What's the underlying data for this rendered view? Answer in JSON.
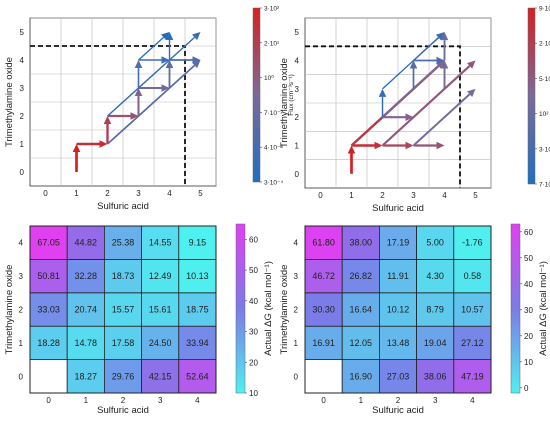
{
  "chart_data": [
    {
      "type": "vector-field",
      "xlabel": "Sulfuric acid",
      "ylabel": "Trimethylamine oxide",
      "xticks": [
        "0",
        "1",
        "2",
        "3",
        "4",
        "5"
      ],
      "yticks": [
        "0",
        "1",
        "2",
        "3",
        "4",
        "5"
      ],
      "xlim": [
        -0.5,
        5.5
      ],
      "ylim": [
        -0.5,
        5.5
      ],
      "dashed_marker": {
        "x": 4.5,
        "y": 4.5
      },
      "colorbar": {
        "label": "Flux (cm⁻³s⁻¹)",
        "scale": "log",
        "tick_labels": [
          "3·10²",
          "2·10¹",
          "10⁰",
          "7·10⁻²",
          "4·10⁻³",
          "3·10⁻⁴"
        ],
        "colors": [
          "#d62020",
          "#1f6fc0"
        ]
      },
      "arrows": [
        {
          "x0": 1,
          "y0": 0,
          "x1": 1,
          "y1": 1,
          "flux": 300
        },
        {
          "x0": 1,
          "y0": 1,
          "x1": 2,
          "y1": 1,
          "flux": 100
        },
        {
          "x0": 2,
          "y0": 1,
          "x1": 2,
          "y1": 2,
          "flux": 20
        },
        {
          "x0": 2,
          "y0": 2,
          "x1": 3,
          "y1": 2,
          "flux": 5
        },
        {
          "x0": 3,
          "y0": 2,
          "x1": 3,
          "y1": 3,
          "flux": 1
        },
        {
          "x0": 3,
          "y0": 3,
          "x1": 4,
          "y1": 3,
          "flux": 0.3
        },
        {
          "x0": 4,
          "y0": 3,
          "x1": 4,
          "y1": 4,
          "flux": 0.1
        },
        {
          "x0": 4,
          "y0": 4,
          "x1": 5,
          "y1": 4,
          "flux": 0.03
        },
        {
          "x0": 2,
          "y0": 1,
          "x1": 5,
          "y1": 4,
          "flux": 0.07
        },
        {
          "x0": 2,
          "y0": 2,
          "x1": 5,
          "y1": 5,
          "flux": 0.005
        },
        {
          "x0": 3,
          "y0": 3,
          "x1": 3,
          "y1": 4,
          "flux": 0.02
        },
        {
          "x0": 3,
          "y0": 4,
          "x1": 4,
          "y1": 4,
          "flux": 0.01
        },
        {
          "x0": 4,
          "y0": 4,
          "x1": 4,
          "y1": 5,
          "flux": 0.002
        },
        {
          "x0": 3,
          "y0": 4,
          "x1": 4,
          "y1": 5,
          "flux": 0.001
        }
      ]
    },
    {
      "type": "vector-field",
      "xlabel": "Sulfuric acid",
      "ylabel": "Trimethylamine oxide",
      "xticks": [
        "0",
        "1",
        "2",
        "3",
        "4",
        "5"
      ],
      "yticks": [
        "0",
        "1",
        "2",
        "3",
        "4",
        "5"
      ],
      "xlim": [
        -0.5,
        5.5
      ],
      "ylim": [
        -0.5,
        5.5
      ],
      "dashed_marker": {
        "x": 4.5,
        "y": 4.5
      },
      "colorbar": {
        "label": "Flux (cm⁻³s⁻¹)",
        "scale": "log",
        "tick_labels": [
          "9·10³",
          "2·10³",
          "5·10²",
          "10²",
          "3·10¹",
          "7·10⁰"
        ],
        "colors": [
          "#d62020",
          "#1f6fc0"
        ]
      },
      "arrows": [
        {
          "x0": 1,
          "y0": 0,
          "x1": 1,
          "y1": 1,
          "flux": 9000
        },
        {
          "x0": 1,
          "y0": 1,
          "x1": 2,
          "y1": 1,
          "flux": 5000
        },
        {
          "x0": 2,
          "y0": 1,
          "x1": 3,
          "y1": 1,
          "flux": 2000
        },
        {
          "x0": 3,
          "y0": 1,
          "x1": 4,
          "y1": 1,
          "flux": 900
        },
        {
          "x0": 1,
          "y0": 1,
          "x1": 4,
          "y1": 4,
          "flux": 3000
        },
        {
          "x0": 2,
          "y0": 1,
          "x1": 5,
          "y1": 4,
          "flux": 800
        },
        {
          "x0": 3,
          "y0": 1,
          "x1": 5,
          "y1": 3,
          "flux": 300
        },
        {
          "x0": 2,
          "y0": 2,
          "x1": 3,
          "y1": 2,
          "flux": 500
        },
        {
          "x0": 2,
          "y0": 2,
          "x1": 4,
          "y1": 4,
          "flux": 400
        },
        {
          "x0": 2,
          "y0": 2,
          "x1": 2,
          "y1": 3,
          "flux": 30
        },
        {
          "x0": 2,
          "y0": 3,
          "x1": 4,
          "y1": 5,
          "flux": 15
        },
        {
          "x0": 3,
          "y0": 3,
          "x1": 3,
          "y1": 4,
          "flux": 100
        },
        {
          "x0": 3,
          "y0": 4,
          "x1": 4,
          "y1": 4,
          "flux": 80
        },
        {
          "x0": 3,
          "y0": 4,
          "x1": 4,
          "y1": 5,
          "flux": 40
        },
        {
          "x0": 4,
          "y0": 4,
          "x1": 4,
          "y1": 5,
          "flux": 200
        },
        {
          "x0": 4,
          "y0": 3,
          "x1": 4,
          "y1": 4,
          "flux": 300
        }
      ]
    },
    {
      "type": "heatmap",
      "xlabel": "Sulfuric acid",
      "ylabel": "Trimethylamine oxide",
      "xticks": [
        "0",
        "1",
        "2",
        "3",
        "4"
      ],
      "yticks": [
        "0",
        "1",
        "2",
        "3",
        "4"
      ],
      "colorbar": {
        "label": "Actual ΔG (kcal mol⁻¹)",
        "range": [
          10,
          65
        ],
        "tick_labels": [
          "10",
          "20",
          "30",
          "40",
          "50",
          "60"
        ],
        "colors": [
          "#4ff0f0",
          "#7b7be8",
          "#e040f0"
        ]
      },
      "values": [
        [
          null,
          18.27,
          29.76,
          42.15,
          52.64
        ],
        [
          18.28,
          14.78,
          17.58,
          24.5,
          33.94
        ],
        [
          33.03,
          20.74,
          15.57,
          15.61,
          18.75
        ],
        [
          50.81,
          32.28,
          18.73,
          12.49,
          10.13
        ],
        [
          67.05,
          44.82,
          25.38,
          14.55,
          9.15
        ]
      ],
      "labels": [
        [
          "",
          "18.27",
          "29.76",
          "42.15",
          "52.64"
        ],
        [
          "18.28",
          "14.78",
          "17.58",
          "24.50",
          "33.94"
        ],
        [
          "33.03",
          "20.74",
          "15.57",
          "15.61",
          "18.75"
        ],
        [
          "50.81",
          "32.28",
          "18.73",
          "12.49",
          "10.13"
        ],
        [
          "67.05",
          "44.82",
          "25.38",
          "14.55",
          "9.15"
        ]
      ]
    },
    {
      "type": "heatmap",
      "xlabel": "Sulfuric acid",
      "ylabel": "Trimethylamine oxide",
      "xticks": [
        "0",
        "1",
        "2",
        "3",
        "4"
      ],
      "yticks": [
        "0",
        "1",
        "2",
        "3",
        "4"
      ],
      "colorbar": {
        "label": "Actual ΔG (kcal mol⁻¹)",
        "range": [
          -2,
          63
        ],
        "tick_labels": [
          "0",
          "10",
          "20",
          "30",
          "40",
          "50",
          "60"
        ],
        "colors": [
          "#4ff0f0",
          "#7b7be8",
          "#e040f0"
        ]
      },
      "values": [
        [
          null,
          16.9,
          27.03,
          38.06,
          47.19
        ],
        [
          16.91,
          12.05,
          13.48,
          19.04,
          27.12
        ],
        [
          30.3,
          16.64,
          10.12,
          8.79,
          10.57
        ],
        [
          46.72,
          26.82,
          11.91,
          4.3,
          0.58
        ],
        [
          61.8,
          38.0,
          17.19,
          5.0,
          -1.76
        ]
      ],
      "labels": [
        [
          "",
          "16.90",
          "27.03",
          "38.06",
          "47.19"
        ],
        [
          "16.91",
          "12.05",
          "13.48",
          "19.04",
          "27.12"
        ],
        [
          "30.30",
          "16.64",
          "10.12",
          "8.79",
          "10.57"
        ],
        [
          "46.72",
          "26.82",
          "11.91",
          "4.30",
          "0.58"
        ],
        [
          "61.80",
          "38.00",
          "17.19",
          "5.00",
          "-1.76"
        ]
      ]
    }
  ]
}
